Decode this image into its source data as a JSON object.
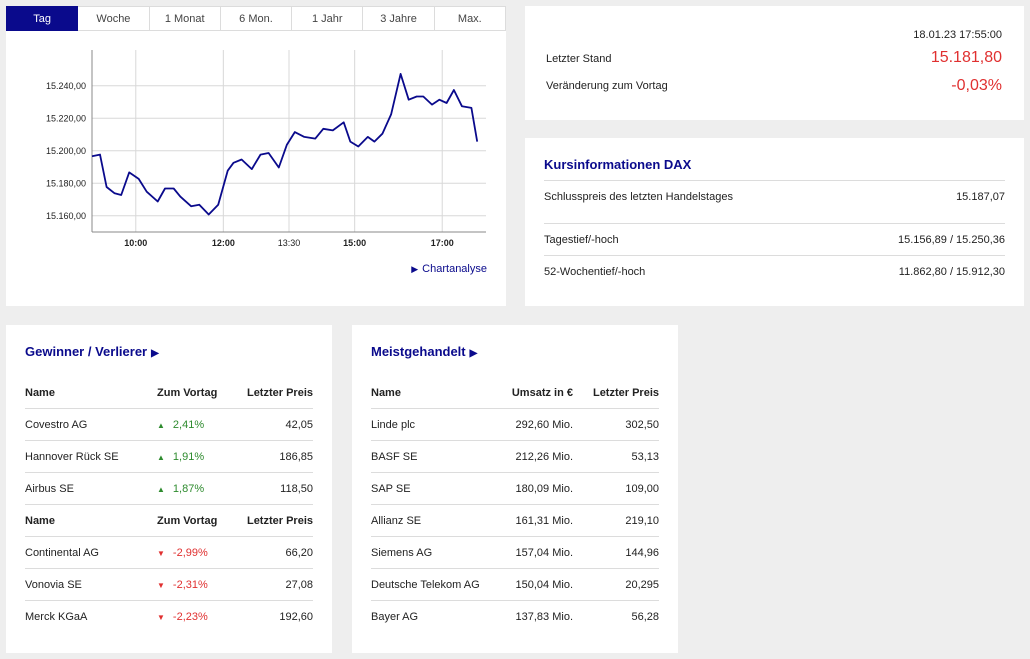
{
  "chart_tabs": [
    {
      "label": "Tag",
      "active": true
    },
    {
      "label": "Woche",
      "active": false
    },
    {
      "label": "1 Monat",
      "active": false
    },
    {
      "label": "6 Mon.",
      "active": false
    },
    {
      "label": "1 Jahr",
      "active": false
    },
    {
      "label": "3 Jahre",
      "active": false
    },
    {
      "label": "Max.",
      "active": false
    }
  ],
  "chart_link": "Chartanalyse",
  "chart_data": {
    "type": "line",
    "title": "",
    "xlabel": "",
    "ylabel": "",
    "x_ticks": [
      "10:00",
      "12:00",
      "13:30",
      "15:00",
      "17:00"
    ],
    "x_tick_minutes": [
      600,
      720,
      810,
      900,
      1020
    ],
    "x_range": [
      540,
      1080
    ],
    "ylim": [
      15150,
      15262
    ],
    "y_ticks": [
      15160,
      15180,
      15200,
      15220,
      15240
    ],
    "y_tick_labels": [
      "15.160,00",
      "15.180,00",
      "15.200,00",
      "15.220,00",
      "15.240,00"
    ],
    "grid": true,
    "line_color": "#0a0a8c",
    "series": [
      {
        "x": [
          540,
          551,
          560,
          571,
          580,
          591,
          604,
          615,
          630,
          640,
          652,
          661,
          676,
          687,
          700,
          713,
          726,
          734,
          745,
          759,
          771,
          782,
          796,
          807,
          818,
          831,
          846,
          857,
          870,
          885,
          894,
          905,
          918,
          927,
          938,
          950,
          963,
          974,
          985,
          994,
          1006,
          1016,
          1026,
          1036,
          1047,
          1060,
          1068
        ],
        "y": [
          15196.6,
          15197.6,
          15177.7,
          15173.8,
          15172.8,
          15186.7,
          15182.7,
          15174.8,
          15168.8,
          15176.8,
          15176.8,
          15171.8,
          15165.8,
          15166.8,
          15160.8,
          15166.8,
          15187.7,
          15192.6,
          15194.6,
          15188.7,
          15197.6,
          15198.6,
          15189.7,
          15203.6,
          15211.5,
          15208.5,
          15207.5,
          15213.5,
          15212.5,
          15217.5,
          15205.6,
          15202.6,
          15208.5,
          15205.6,
          15210.5,
          15222.4,
          15247.3,
          15231.4,
          15233.4,
          15233.4,
          15228.4,
          15231.4,
          15229.4,
          15237.4,
          15227.4,
          15226.4,
          15205.6
        ]
      }
    ]
  },
  "quote": {
    "date": "18.01.23 17:55:00",
    "last_label": "Letzter Stand",
    "last_value": "15.181,80",
    "change_label": "Veränderung zum Vortag",
    "change_value": "-0,03%"
  },
  "info": {
    "title": "Kursinformationen DAX",
    "rows": [
      {
        "label": "Schlusspreis des letzten Handelstages",
        "value": "15.187,07"
      },
      {
        "label": "Tagestief/-hoch",
        "value": "15.156,89 / 15.250,36"
      },
      {
        "label": "52-Wochentief/-hoch",
        "value": "11.862,80 / 15.912,30"
      }
    ]
  },
  "movers": {
    "title": "Gewinner / Verlierer",
    "headers": [
      "Name",
      "Zum Vortag",
      "Letzter Preis"
    ],
    "gainers": [
      {
        "name": "Covestro AG",
        "change": "2,41%",
        "price": "42,05"
      },
      {
        "name": "Hannover Rück SE",
        "change": "1,91%",
        "price": "186,85"
      },
      {
        "name": "Airbus SE",
        "change": "1,87%",
        "price": "118,50"
      }
    ],
    "losers": [
      {
        "name": "Continental AG",
        "change": "-2,99%",
        "price": "66,20"
      },
      {
        "name": "Vonovia SE",
        "change": "-2,31%",
        "price": "27,08"
      },
      {
        "name": "Merck KGaA",
        "change": "-2,23%",
        "price": "192,60"
      }
    ],
    "up_color": "#2e8b2e",
    "down_color": "#e03030"
  },
  "most_active": {
    "title": "Meistgehandelt",
    "headers": [
      "Name",
      "Umsatz in €",
      "Letzter Preis"
    ],
    "rows": [
      {
        "name": "Linde plc",
        "turnover": "292,60 Mio.",
        "price": "302,50"
      },
      {
        "name": "BASF SE",
        "turnover": "212,26 Mio.",
        "price": "53,13"
      },
      {
        "name": "SAP SE",
        "turnover": "180,09 Mio.",
        "price": "109,00"
      },
      {
        "name": "Allianz SE",
        "turnover": "161,31 Mio.",
        "price": "219,10"
      },
      {
        "name": "Siemens AG",
        "turnover": "157,04 Mio.",
        "price": "144,96"
      },
      {
        "name": "Deutsche Telekom AG",
        "turnover": "150,04 Mio.",
        "price": "20,295"
      },
      {
        "name": "Bayer AG",
        "turnover": "137,83 Mio.",
        "price": "56,28"
      }
    ]
  }
}
